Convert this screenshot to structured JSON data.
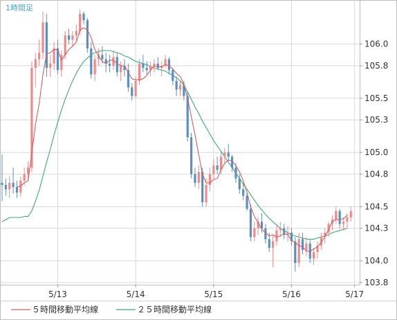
{
  "timeframe_label": "1時間足",
  "chart_data": {
    "type": "candlestick",
    "ylim": [
      103.78,
      106.4
    ],
    "y_ticks": [
      {
        "label": "106.0",
        "value": 106.0
      },
      {
        "label": "105.8",
        "value": 105.8
      },
      {
        "label": "105.5",
        "value": 105.5
      },
      {
        "label": "105.3",
        "value": 105.3
      },
      {
        "label": "105.0",
        "value": 105.0
      },
      {
        "label": "104.8",
        "value": 104.8
      },
      {
        "label": "104.5",
        "value": 104.5
      },
      {
        "label": "104.3",
        "value": 104.3
      },
      {
        "label": "104.0",
        "value": 104.0
      },
      {
        "label": "103.8",
        "value": 103.8
      }
    ],
    "x_range": [
      0,
      96
    ],
    "x_ticks": [
      {
        "label": "5/13",
        "value": 15
      },
      {
        "label": "5/14",
        "value": 36
      },
      {
        "label": "5/15",
        "value": 57
      },
      {
        "label": "5/16",
        "value": 78
      },
      {
        "label": "5/17",
        "value": 95
      }
    ],
    "colors": {
      "up": "#f08a8a",
      "down": "#5b8fc2",
      "ma5": "#d06060",
      "ma25": "#3aaa74",
      "grid": "#d8d8d8"
    },
    "candles": [
      [
        104.72,
        104.98,
        104.55,
        104.7
      ],
      [
        104.7,
        104.76,
        104.6,
        104.66
      ],
      [
        104.66,
        104.78,
        104.58,
        104.72
      ],
      [
        104.72,
        104.86,
        104.62,
        104.68
      ],
      [
        104.68,
        104.74,
        104.58,
        104.63
      ],
      [
        104.63,
        104.78,
        104.59,
        104.74
      ],
      [
        104.74,
        104.86,
        104.7,
        104.8
      ],
      [
        104.8,
        104.92,
        104.74,
        104.86
      ],
      [
        104.86,
        105.84,
        104.82,
        105.78
      ],
      [
        105.78,
        105.92,
        105.6,
        105.86
      ],
      [
        105.86,
        106.04,
        105.8,
        105.92
      ],
      [
        105.92,
        106.3,
        105.86,
        106.2
      ],
      [
        106.2,
        106.28,
        105.7,
        105.78
      ],
      [
        105.78,
        105.9,
        105.7,
        105.82
      ],
      [
        105.82,
        106.02,
        105.76,
        105.96
      ],
      [
        105.96,
        106.04,
        105.72,
        105.76
      ],
      [
        105.76,
        105.94,
        105.7,
        105.9
      ],
      [
        105.9,
        106.12,
        105.86,
        106.08
      ],
      [
        106.08,
        106.14,
        106.0,
        106.04
      ],
      [
        106.04,
        106.12,
        105.98,
        106.08
      ],
      [
        106.08,
        106.18,
        106.02,
        106.12
      ],
      [
        106.12,
        106.32,
        106.08,
        106.28
      ],
      [
        106.28,
        106.3,
        106.18,
        106.22
      ],
      [
        106.22,
        106.24,
        105.92,
        105.96
      ],
      [
        105.96,
        106.02,
        105.68,
        105.72
      ],
      [
        105.72,
        105.9,
        105.66,
        105.86
      ],
      [
        105.86,
        105.96,
        105.8,
        105.9
      ],
      [
        105.9,
        105.98,
        105.82,
        105.86
      ],
      [
        105.86,
        105.92,
        105.74,
        105.82
      ],
      [
        105.82,
        105.9,
        105.74,
        105.8
      ],
      [
        105.8,
        105.94,
        105.76,
        105.88
      ],
      [
        105.88,
        105.92,
        105.7,
        105.74
      ],
      [
        105.74,
        105.84,
        105.66,
        105.8
      ],
      [
        105.8,
        105.86,
        105.7,
        105.76
      ],
      [
        105.76,
        105.82,
        105.56,
        105.6
      ],
      [
        105.6,
        105.64,
        105.48,
        105.52
      ],
      [
        105.52,
        105.7,
        105.5,
        105.66
      ],
      [
        105.66,
        105.86,
        105.62,
        105.82
      ],
      [
        105.82,
        105.9,
        105.74,
        105.78
      ],
      [
        105.78,
        105.84,
        105.72,
        105.76
      ],
      [
        105.76,
        105.84,
        105.7,
        105.8
      ],
      [
        105.8,
        105.86,
        105.74,
        105.82
      ],
      [
        105.82,
        105.88,
        105.76,
        105.78
      ],
      [
        105.78,
        105.84,
        105.7,
        105.8
      ],
      [
        105.8,
        105.9,
        105.78,
        105.86
      ],
      [
        105.86,
        105.88,
        105.72,
        105.76
      ],
      [
        105.76,
        105.78,
        105.62,
        105.66
      ],
      [
        105.66,
        105.7,
        105.52,
        105.58
      ],
      [
        105.58,
        105.66,
        105.52,
        105.62
      ],
      [
        105.62,
        105.66,
        105.48,
        105.52
      ],
      [
        105.52,
        105.56,
        105.1,
        105.14
      ],
      [
        105.14,
        105.18,
        104.76,
        104.8
      ],
      [
        104.8,
        104.86,
        104.68,
        104.72
      ],
      [
        104.72,
        104.88,
        104.66,
        104.82
      ],
      [
        104.82,
        104.86,
        104.5,
        104.54
      ],
      [
        104.54,
        104.76,
        104.5,
        104.7
      ],
      [
        104.7,
        104.86,
        104.64,
        104.8
      ],
      [
        104.8,
        104.94,
        104.76,
        104.88
      ],
      [
        104.88,
        104.96,
        104.8,
        104.84
      ],
      [
        104.84,
        105.0,
        104.8,
        104.96
      ],
      [
        104.96,
        105.04,
        104.9,
        105.0
      ],
      [
        105.0,
        105.08,
        104.92,
        104.96
      ],
      [
        104.96,
        104.98,
        104.82,
        104.86
      ],
      [
        104.86,
        104.9,
        104.72,
        104.76
      ],
      [
        104.76,
        104.8,
        104.62,
        104.66
      ],
      [
        104.66,
        104.72,
        104.56,
        104.6
      ],
      [
        104.6,
        104.64,
        104.46,
        104.48
      ],
      [
        104.48,
        104.52,
        104.18,
        104.22
      ],
      [
        104.22,
        104.36,
        104.18,
        104.3
      ],
      [
        104.3,
        104.4,
        104.24,
        104.36
      ],
      [
        104.36,
        104.44,
        104.26,
        104.3
      ],
      [
        104.3,
        104.34,
        104.16,
        104.2
      ],
      [
        104.2,
        104.26,
        104.08,
        104.12
      ],
      [
        104.12,
        104.24,
        103.94,
        104.18
      ],
      [
        104.18,
        104.34,
        104.14,
        104.28
      ],
      [
        104.28,
        104.36,
        104.22,
        104.3
      ],
      [
        104.3,
        104.34,
        104.2,
        104.24
      ],
      [
        104.24,
        104.32,
        104.18,
        104.26
      ],
      [
        104.26,
        104.3,
        104.14,
        104.18
      ],
      [
        104.18,
        104.22,
        103.9,
        103.98
      ],
      [
        103.98,
        104.26,
        103.94,
        104.2
      ],
      [
        104.2,
        104.26,
        104.06,
        104.1
      ],
      [
        104.1,
        104.22,
        104.04,
        104.16
      ],
      [
        104.16,
        104.2,
        103.98,
        104.02
      ],
      [
        104.02,
        104.12,
        103.96,
        104.08
      ],
      [
        104.08,
        104.18,
        104.02,
        104.14
      ],
      [
        104.14,
        104.26,
        104.1,
        104.22
      ],
      [
        104.22,
        104.3,
        104.16,
        104.26
      ],
      [
        104.26,
        104.36,
        104.22,
        104.34
      ],
      [
        104.34,
        104.42,
        104.28,
        104.38
      ],
      [
        104.38,
        104.5,
        104.34,
        104.46
      ],
      [
        104.46,
        104.48,
        104.3,
        104.34
      ],
      [
        104.34,
        104.4,
        104.28,
        104.36
      ],
      [
        104.36,
        104.44,
        104.3,
        104.4
      ],
      [
        104.4,
        104.5,
        104.36,
        104.46
      ]
    ],
    "series": [
      {
        "name": "５時間移動平均線",
        "color": "#d06060",
        "values": [
          null,
          null,
          null,
          null,
          104.68,
          104.69,
          104.72,
          104.74,
          104.99,
          105.26,
          105.45,
          105.72,
          105.91,
          105.92,
          105.95,
          105.95,
          105.85,
          105.9,
          105.95,
          105.98,
          106.02,
          106.13,
          106.15,
          106.13,
          106.06,
          105.95,
          105.89,
          105.84,
          105.82,
          105.85,
          105.85,
          105.82,
          105.8,
          105.8,
          105.74,
          105.68,
          105.67,
          105.67,
          105.68,
          105.71,
          105.76,
          105.8,
          105.79,
          105.79,
          105.81,
          105.8,
          105.77,
          105.73,
          105.7,
          105.63,
          105.5,
          105.33,
          105.16,
          104.98,
          104.8,
          104.72,
          104.72,
          104.75,
          104.76,
          104.84,
          104.9,
          104.93,
          104.92,
          104.88,
          104.82,
          104.74,
          104.63,
          104.5,
          104.41,
          104.35,
          104.29,
          104.26,
          104.23,
          104.24,
          104.22,
          104.23,
          104.25,
          104.24,
          104.19,
          104.17,
          104.14,
          104.13,
          104.09,
          104.09,
          104.11,
          104.13,
          104.17,
          104.22,
          104.29,
          104.36,
          104.38,
          104.38,
          104.39,
          104.42
        ]
      },
      {
        "name": "２５時間移動平均線",
        "color": "#3aaa74",
        "values": [
          104.36,
          104.38,
          104.4,
          104.4,
          104.4,
          104.4,
          104.41,
          104.41,
          104.46,
          104.55,
          104.65,
          104.78,
          104.91,
          105.03,
          105.16,
          105.28,
          105.39,
          105.49,
          105.58,
          105.66,
          105.73,
          105.79,
          105.84,
          105.87,
          105.9,
          105.92,
          105.93,
          105.94,
          105.94,
          105.94,
          105.93,
          105.92,
          105.91,
          105.89,
          105.88,
          105.86,
          105.84,
          105.83,
          105.82,
          105.81,
          105.79,
          105.78,
          105.77,
          105.76,
          105.75,
          105.73,
          105.71,
          105.69,
          105.66,
          105.62,
          105.56,
          105.49,
          105.42,
          105.36,
          105.29,
          105.23,
          105.17,
          105.11,
          105.06,
          105.01,
          104.96,
          104.91,
          104.86,
          104.81,
          104.76,
          104.71,
          104.66,
          104.61,
          104.56,
          104.51,
          104.47,
          104.43,
          104.39,
          104.36,
          104.33,
          104.3,
          104.28,
          104.26,
          104.24,
          104.23,
          104.22,
          104.21,
          104.2,
          104.2,
          104.2,
          104.21,
          104.22,
          104.23,
          104.24,
          104.26,
          104.27,
          104.28,
          104.29,
          104.3
        ]
      }
    ]
  }
}
